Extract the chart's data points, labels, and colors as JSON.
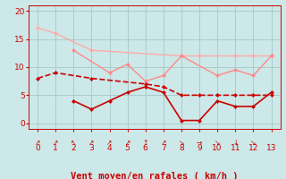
{
  "background_color": "#cce8e8",
  "grid_color": "#aacccc",
  "xlabel": "Vent moyen/en rafales ( km/h )",
  "xlabel_color": "#cc0000",
  "xlabel_fontsize": 7.5,
  "tick_color": "#cc0000",
  "tick_fontsize": 6.5,
  "ylim": [
    -1,
    21
  ],
  "xlim": [
    -0.5,
    13.5
  ],
  "yticks": [
    0,
    5,
    10,
    15,
    20
  ],
  "xticks": [
    0,
    1,
    2,
    3,
    4,
    5,
    6,
    7,
    8,
    9,
    10,
    11,
    12,
    13
  ],
  "arrow_labels": [
    "↗",
    "↗",
    "↖",
    "↗",
    "↗",
    "↗",
    "↑",
    "↗",
    "↘",
    "→",
    "↘",
    "↓",
    "↘"
  ],
  "line1_x": [
    0,
    1,
    3,
    8,
    9,
    11,
    12,
    13
  ],
  "line1_y": [
    17,
    16,
    13,
    12,
    12,
    12,
    12,
    12
  ],
  "line1_color": "#ffaaaa",
  "line1_marker": "D",
  "line1_markersize": 2.5,
  "line1_linewidth": 1.0,
  "line2_x": [
    2,
    4,
    5,
    6,
    7,
    8,
    10,
    11,
    12,
    13
  ],
  "line2_y": [
    13,
    9,
    10.5,
    7.5,
    8.5,
    12,
    8.5,
    9.5,
    8.5,
    12
  ],
  "line2_color": "#ff8888",
  "line2_marker": "D",
  "line2_markersize": 2.5,
  "line2_linewidth": 1.0,
  "line3_x": [
    0,
    1,
    3,
    6,
    7,
    8,
    9,
    10,
    11,
    12,
    13
  ],
  "line3_y": [
    8,
    9,
    8,
    7,
    6.5,
    5,
    5,
    5,
    5,
    5,
    5
  ],
  "line3_color": "#cc0000",
  "line3_marker": "D",
  "line3_markersize": 2.5,
  "line3_linewidth": 1.2,
  "line3_linestyle": "--",
  "line4_x": [
    2,
    3,
    4,
    5,
    6,
    7,
    8,
    9,
    10,
    11,
    12,
    13
  ],
  "line4_y": [
    4,
    2.5,
    4,
    5.5,
    6.5,
    5.5,
    0.5,
    0.5,
    4,
    3,
    3,
    5.5
  ],
  "line4_color": "#cc0000",
  "line4_marker": "D",
  "line4_markersize": 2.5,
  "line4_linewidth": 1.2,
  "line4_linestyle": "-"
}
